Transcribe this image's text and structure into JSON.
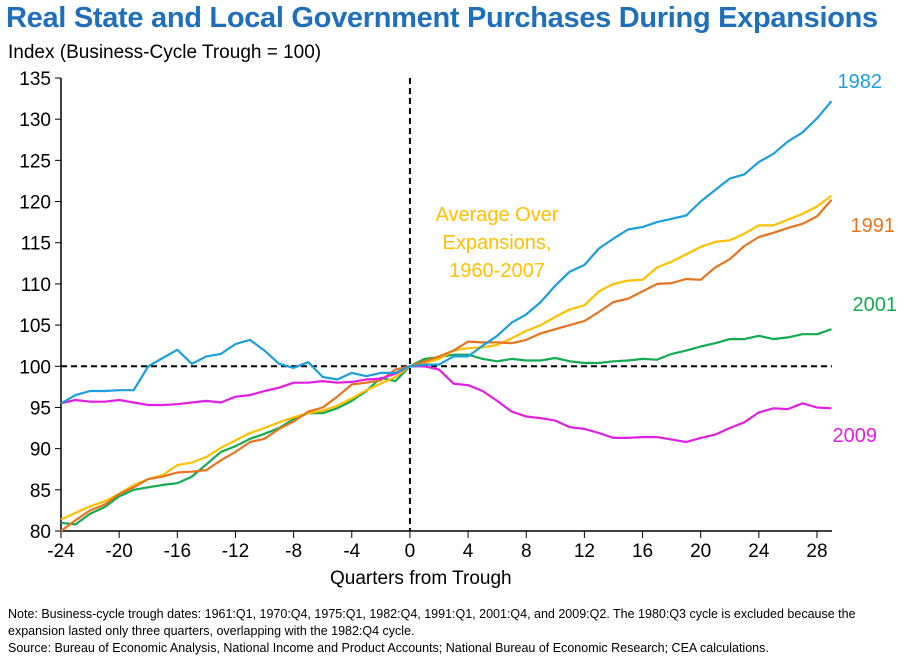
{
  "chart_data": {
    "type": "line",
    "title": "Real State and Local Government Purchases During Expansions",
    "ylabel": "Index (Business-Cycle Trough = 100)",
    "xlabel": "Quarters from Trough",
    "ylim": [
      80,
      135
    ],
    "xlim": [
      -24,
      29
    ],
    "yticks": [
      80,
      85,
      90,
      95,
      100,
      105,
      110,
      115,
      120,
      125,
      130,
      135
    ],
    "xticks": [
      -24,
      -20,
      -16,
      -12,
      -8,
      -4,
      0,
      4,
      8,
      12,
      16,
      20,
      24,
      28
    ],
    "reference_lines": {
      "x": 0,
      "y": 100
    },
    "x_start": -24,
    "series": [
      {
        "name": "1982",
        "color": "#1a9fdc",
        "label_color": "#1a9fdc",
        "values": [
          95.5,
          96.5,
          97,
          97,
          97.1,
          97.1,
          100,
          101,
          102,
          100.3,
          101.2,
          101.5,
          102.7,
          103.2,
          101.9,
          100.3,
          99.8,
          100.5,
          98.7,
          98.4,
          99.2,
          98.8,
          99.2,
          99.2,
          100,
          100.2,
          100.2,
          101.2,
          101.2,
          102.5,
          103.7,
          105.3,
          106.3,
          107.8,
          109.8,
          111.5,
          112.3,
          114.3,
          115.5,
          116.6,
          116.9,
          117.5,
          117.9,
          118.3,
          120,
          121.4,
          122.8,
          123.3,
          124.8,
          125.8,
          127.3,
          128.4,
          130.1,
          132.2
        ]
      },
      {
        "name": "Average Over Expansions, 1960-2007",
        "label_lines": [
          "Average Over",
          "Expansions,",
          "1960-2007"
        ],
        "color": "#ffc000",
        "values": [
          81.4,
          82.2,
          83,
          83.6,
          84.5,
          85.6,
          86.3,
          86.8,
          88,
          88.3,
          89,
          90.1,
          91,
          91.9,
          92.5,
          93.2,
          93.8,
          94.3,
          94.6,
          95.2,
          96.1,
          97.1,
          97.9,
          98.7,
          100,
          100.4,
          100.9,
          101.9,
          102.2,
          102.3,
          102.6,
          103.4,
          104.3,
          105,
          106,
          106.9,
          107.4,
          109.1,
          110,
          110.4,
          110.5,
          112,
          112.7,
          113.6,
          114.5,
          115.1,
          115.3,
          116.1,
          117.1,
          117.1,
          117.8,
          118.5,
          119.4,
          120.7
        ]
      },
      {
        "name": "1991",
        "color": "#e8731e",
        "values": [
          80,
          81.3,
          82.5,
          83.2,
          84.5,
          85.3,
          86.3,
          86.6,
          87.1,
          87.2,
          87.4,
          88.6,
          89.6,
          90.8,
          91.2,
          92.4,
          93.3,
          94.5,
          95,
          96.3,
          97.8,
          98,
          98.3,
          99.6,
          100,
          100.6,
          101.2,
          101.9,
          103,
          102.9,
          102.9,
          102.8,
          103.2,
          104,
          104.5,
          105,
          105.5,
          106.6,
          107.8,
          108.2,
          109.1,
          110,
          110.1,
          110.6,
          110.5,
          112,
          113,
          114.6,
          115.7,
          116.2,
          116.8,
          117.3,
          118.2,
          120.2
        ]
      },
      {
        "name": "2001",
        "color": "#13ab4f",
        "values": [
          81,
          80.8,
          82.1,
          82.9,
          84.2,
          85,
          85.3,
          85.6,
          85.8,
          86.6,
          88.1,
          89.6,
          90.3,
          91.2,
          91.8,
          92.5,
          93.6,
          94.3,
          94.3,
          94.9,
          95.8,
          97,
          98.6,
          98.2,
          100,
          100.9,
          101.1,
          101.4,
          101.4,
          100.9,
          100.6,
          100.9,
          100.7,
          100.7,
          101,
          100.6,
          100.4,
          100.4,
          100.6,
          100.7,
          100.9,
          100.8,
          101.5,
          101.9,
          102.4,
          102.8,
          103.3,
          103.3,
          103.7,
          103.3,
          103.5,
          103.9,
          103.9,
          104.5
        ]
      },
      {
        "name": "2009",
        "color": "#e21ee2",
        "values": [
          95.5,
          95.9,
          95.7,
          95.7,
          95.9,
          95.6,
          95.3,
          95.3,
          95.4,
          95.6,
          95.8,
          95.6,
          96.3,
          96.5,
          97,
          97.4,
          98,
          98,
          98.2,
          98,
          98.1,
          98.4,
          98.5,
          99.1,
          100,
          100,
          99.6,
          97.9,
          97.7,
          97,
          95.8,
          94.5,
          93.9,
          93.7,
          93.4,
          92.6,
          92.4,
          91.9,
          91.3,
          91.3,
          91.4,
          91.4,
          91.1,
          90.8,
          91.3,
          91.7,
          92.5,
          93.2,
          94.4,
          94.9,
          94.8,
          95.5,
          95,
          94.9
        ]
      }
    ]
  },
  "note_lines": [
    "Note:  Business-cycle trough dates: 1961:Q1, 1970:Q4, 1975:Q1, 1982:Q4, 1991:Q1, 2001:Q4, and 2009:Q2.  The 1980:Q3 cycle is excluded because the",
    "expansion lasted only three quarters, overlapping with the 1982:Q4 cycle.",
    "Source: Bureau of Economic Analysis, National Income and Product Accounts; National Bureau of Economic Research; CEA calculations."
  ]
}
